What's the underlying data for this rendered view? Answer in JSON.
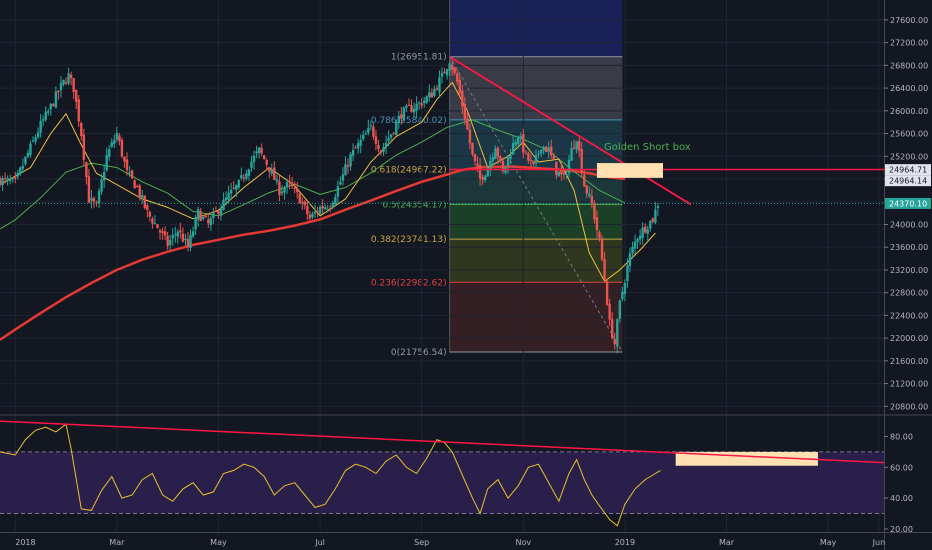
{
  "chart_data": {
    "type": "candlestick",
    "x_axis": {
      "ticks": [
        {
          "label": "2018",
          "t": 0
        },
        {
          "label": "Mar",
          "t": 2
        },
        {
          "label": "May",
          "t": 4
        },
        {
          "label": "Jul",
          "t": 6
        },
        {
          "label": "Sep",
          "t": 8
        },
        {
          "label": "Nov",
          "t": 10
        },
        {
          "label": "2019",
          "t": 12
        },
        {
          "label": "Mar",
          "t": 14
        },
        {
          "label": "May",
          "t": 16
        },
        {
          "label": "Jun",
          "t": 17
        }
      ],
      "range": [
        -0.3,
        17.1
      ]
    },
    "y_axis": {
      "range": [
        20700,
        27950
      ],
      "ticks": [
        20800,
        21200,
        21600,
        22000,
        22400,
        22800,
        23200,
        23600,
        24000,
        24400,
        24800,
        25200,
        25600,
        26000,
        26400,
        26800,
        27200,
        27600
      ],
      "tick_labels": [
        "20800.00",
        "21200.00",
        "21600.00",
        "22000.00",
        "22400.00",
        "22800.00",
        "23200.00",
        "23600.00",
        "24000.00",
        "24400.00",
        "24800.00",
        "25200.00",
        "25600.00",
        "26000.00",
        "26400.00",
        "26800.00",
        "27200.00",
        "27600.00"
      ]
    },
    "price_tags": [
      {
        "label": "24964.71",
        "value": 24964.71,
        "color": "#e0e3eb",
        "text_color": "#131722"
      },
      {
        "label": "24964.14",
        "value": 24964.14,
        "color": "#e0e3eb",
        "text_color": "#131722"
      },
      {
        "label": "24370.10",
        "value": 24370.1,
        "color": "#26a69a",
        "text_color": "#ffffff"
      }
    ],
    "fibonacci": {
      "t_start": 8.55,
      "t_end": 11.95,
      "levels": [
        {
          "label": "1(26951.81)",
          "value": 26951.81,
          "color": "#9598a1",
          "fill": "#434651"
        },
        {
          "label": "0.786(25840.02)",
          "value": 25840.02,
          "color": "#4a90b8",
          "fill": "#1e4050"
        },
        {
          "label": "0.618(24967.22)",
          "value": 24967.22,
          "color": "#c7a544",
          "fill": "#1e4040"
        },
        {
          "label": "0.5(24354.17)",
          "value": 24354.17,
          "color": "#4caf50",
          "fill": "#1f4a2a"
        },
        {
          "label": "0.382(23741.13)",
          "value": 23741.13,
          "color": "#c7a544",
          "fill": "#37401e"
        },
        {
          "label": "0.236(22982.62)",
          "value": 22982.62,
          "color": "#e04040",
          "fill": "#3d2226"
        },
        {
          "label": "0(21756.54)",
          "value": 21756.54,
          "color": "#9598a1",
          "fill": null
        }
      ],
      "extension_fill": "#1b2560"
    },
    "annotation": {
      "text": "Golden Short box",
      "color": "#4caf50"
    },
    "short_box": {
      "t_start": 11.45,
      "t_end": 12.75,
      "y_bottom": 24820,
      "y_top": 25080,
      "color": "#ffe0b2"
    },
    "horizontal_line": {
      "value": 24967,
      "color": "#ff1744"
    },
    "trendline": {
      "points": [
        [
          8.55,
          26951.81
        ],
        [
          13.3,
          24350
        ]
      ],
      "color": "#ff1744"
    },
    "dashed_line": {
      "points": [
        [
          8.55,
          26951.81
        ],
        [
          11.95,
          21756.54
        ]
      ],
      "color": "#787b86"
    },
    "moving_averages": [
      {
        "name": "",
        "color": "#e53935",
        "width": 2.5,
        "values": [
          [
            -0.3,
            21970
          ],
          [
            0,
            22150
          ],
          [
            0.5,
            22440
          ],
          [
            1,
            22720
          ],
          [
            1.5,
            22970
          ],
          [
            2,
            23200
          ],
          [
            2.5,
            23380
          ],
          [
            3,
            23520
          ],
          [
            3.5,
            23640
          ],
          [
            4,
            23730
          ],
          [
            4.5,
            23820
          ],
          [
            5,
            23890
          ],
          [
            5.5,
            23980
          ],
          [
            6,
            24090
          ],
          [
            6.5,
            24260
          ],
          [
            7,
            24420
          ],
          [
            7.5,
            24590
          ],
          [
            8,
            24750
          ],
          [
            8.5,
            24880
          ],
          [
            8.8,
            24960
          ],
          [
            9.2,
            25010
          ],
          [
            9.8,
            25020
          ],
          [
            10.3,
            24990
          ],
          [
            10.8,
            24960
          ],
          [
            11.3,
            24900
          ],
          [
            11.7,
            24830
          ],
          [
            12,
            24800
          ]
        ]
      },
      {
        "name": "",
        "color": "#4caf50",
        "width": 1,
        "values": [
          [
            -0.3,
            23920
          ],
          [
            0,
            24080
          ],
          [
            0.5,
            24470
          ],
          [
            1,
            24920
          ],
          [
            1.5,
            25080
          ],
          [
            2,
            25000
          ],
          [
            2.5,
            24750
          ],
          [
            3,
            24550
          ],
          [
            3.5,
            24230
          ],
          [
            4,
            24150
          ],
          [
            4.5,
            24350
          ],
          [
            5,
            24560
          ],
          [
            5.5,
            24710
          ],
          [
            6,
            24530
          ],
          [
            6.5,
            24650
          ],
          [
            7,
            24910
          ],
          [
            7.5,
            25220
          ],
          [
            8,
            25450
          ],
          [
            8.5,
            25710
          ],
          [
            9,
            25840
          ],
          [
            9.5,
            25660
          ],
          [
            10,
            25500
          ],
          [
            10.5,
            25300
          ],
          [
            11,
            24930
          ],
          [
            11.5,
            24600
          ],
          [
            12,
            24380
          ]
        ]
      },
      {
        "name": "",
        "color": "#f0c040",
        "width": 1,
        "values": [
          [
            -0.3,
            24700
          ],
          [
            0,
            24850
          ],
          [
            0.3,
            25000
          ],
          [
            0.7,
            25600
          ],
          [
            1,
            25950
          ],
          [
            1.3,
            25400
          ],
          [
            1.6,
            24900
          ],
          [
            2,
            24700
          ],
          [
            2.5,
            24450
          ],
          [
            3,
            24300
          ],
          [
            3.5,
            24100
          ],
          [
            4,
            24250
          ],
          [
            4.5,
            24650
          ],
          [
            5,
            25000
          ],
          [
            5.5,
            24680
          ],
          [
            6,
            24150
          ],
          [
            6.5,
            24450
          ],
          [
            7,
            25100
          ],
          [
            7.5,
            25550
          ],
          [
            8,
            25800
          ],
          [
            8.3,
            26200
          ],
          [
            8.6,
            26500
          ],
          [
            8.9,
            26000
          ],
          [
            9.3,
            25000
          ],
          [
            9.7,
            25200
          ],
          [
            10,
            25450
          ],
          [
            10.3,
            25100
          ],
          [
            10.7,
            25150
          ],
          [
            11,
            24600
          ],
          [
            11.3,
            23500
          ],
          [
            11.6,
            23000
          ],
          [
            11.9,
            23200
          ],
          [
            12.3,
            23550
          ],
          [
            12.6,
            23850
          ]
        ]
      }
    ],
    "series": [
      {
        "name": "",
        "values": [
          [
            -0.3,
            24780
          ],
          [
            0,
            24730
          ],
          [
            0.2,
            25150
          ],
          [
            0.35,
            25450
          ],
          [
            0.5,
            25750
          ],
          [
            0.65,
            25980
          ],
          [
            0.8,
            26250
          ],
          [
            0.95,
            26500
          ],
          [
            1.05,
            26616
          ],
          [
            1.15,
            26400
          ],
          [
            1.3,
            25600
          ],
          [
            1.45,
            24450
          ],
          [
            1.6,
            24300
          ],
          [
            1.8,
            25200
          ],
          [
            2,
            25600
          ],
          [
            2.2,
            24900
          ],
          [
            2.4,
            24650
          ],
          [
            2.6,
            24200
          ],
          [
            2.8,
            23950
          ],
          [
            3,
            23650
          ],
          [
            3.2,
            23900
          ],
          [
            3.4,
            23600
          ],
          [
            3.6,
            24200
          ],
          [
            3.8,
            24000
          ],
          [
            4,
            24260
          ],
          [
            4.2,
            24500
          ],
          [
            4.4,
            24700
          ],
          [
            4.6,
            25050
          ],
          [
            4.8,
            25300
          ],
          [
            5,
            25000
          ],
          [
            5.2,
            24600
          ],
          [
            5.4,
            24700
          ],
          [
            5.6,
            24450
          ],
          [
            5.8,
            24100
          ],
          [
            6,
            24300
          ],
          [
            6.2,
            24350
          ],
          [
            6.4,
            24750
          ],
          [
            6.6,
            25200
          ],
          [
            6.8,
            25450
          ],
          [
            7,
            25700
          ],
          [
            7.2,
            25300
          ],
          [
            7.4,
            25600
          ],
          [
            7.6,
            25950
          ],
          [
            7.8,
            26050
          ],
          [
            8,
            26150
          ],
          [
            8.2,
            26300
          ],
          [
            8.4,
            26600
          ],
          [
            8.55,
            26900
          ],
          [
            8.7,
            26500
          ],
          [
            8.85,
            25900
          ],
          [
            9,
            25200
          ],
          [
            9.15,
            24800
          ],
          [
            9.3,
            25000
          ],
          [
            9.45,
            25400
          ],
          [
            9.6,
            24900
          ],
          [
            9.75,
            25300
          ],
          [
            9.9,
            25600
          ],
          [
            10.05,
            25200
          ],
          [
            10.2,
            25000
          ],
          [
            10.35,
            25400
          ],
          [
            10.5,
            25300
          ],
          [
            10.65,
            24950
          ],
          [
            10.8,
            24800
          ],
          [
            10.95,
            25300
          ],
          [
            11.05,
            25550
          ],
          [
            11.2,
            24700
          ],
          [
            11.35,
            24350
          ],
          [
            11.5,
            23700
          ],
          [
            11.6,
            23050
          ],
          [
            11.7,
            22250
          ],
          [
            11.8,
            21900
          ],
          [
            11.9,
            22600
          ],
          [
            12,
            23050
          ],
          [
            12.1,
            23450
          ],
          [
            12.25,
            23800
          ],
          [
            12.4,
            23950
          ],
          [
            12.55,
            24100
          ],
          [
            12.65,
            24370
          ]
        ]
      }
    ],
    "rsi": {
      "y_range": [
        18,
        92
      ],
      "ticks": [
        20,
        40,
        60,
        80
      ],
      "tick_labels": [
        "20.00",
        "40.00",
        "60.00",
        "80.00"
      ],
      "bands": [
        30,
        70
      ],
      "band_fill": "#2a1f4a",
      "trendline": {
        "points": [
          [
            -0.3,
            90
          ],
          [
            17.1,
            63
          ]
        ],
        "color": "#ff1744"
      },
      "box": {
        "t_start": 13.0,
        "t_end": 15.8,
        "y_bottom": 61,
        "y_top": 70,
        "color": "#ffe0b2"
      },
      "values": [
        [
          -0.3,
          70
        ],
        [
          0,
          68
        ],
        [
          0.2,
          78
        ],
        [
          0.4,
          84
        ],
        [
          0.6,
          86
        ],
        [
          0.8,
          83
        ],
        [
          1,
          88
        ],
        [
          1.1,
          72
        ],
        [
          1.3,
          33
        ],
        [
          1.5,
          32
        ],
        [
          1.7,
          45
        ],
        [
          1.9,
          54
        ],
        [
          2.1,
          40
        ],
        [
          2.3,
          42
        ],
        [
          2.5,
          52
        ],
        [
          2.7,
          56
        ],
        [
          2.9,
          42
        ],
        [
          3.1,
          38
        ],
        [
          3.3,
          46
        ],
        [
          3.5,
          50
        ],
        [
          3.7,
          42
        ],
        [
          3.9,
          44
        ],
        [
          4.1,
          56
        ],
        [
          4.3,
          58
        ],
        [
          4.5,
          62
        ],
        [
          4.7,
          60
        ],
        [
          4.9,
          54
        ],
        [
          5.1,
          42
        ],
        [
          5.3,
          48
        ],
        [
          5.5,
          50
        ],
        [
          5.7,
          42
        ],
        [
          5.9,
          34
        ],
        [
          6.1,
          36
        ],
        [
          6.3,
          46
        ],
        [
          6.5,
          58
        ],
        [
          6.7,
          62
        ],
        [
          6.9,
          60
        ],
        [
          7.1,
          56
        ],
        [
          7.3,
          64
        ],
        [
          7.5,
          68
        ],
        [
          7.7,
          60
        ],
        [
          7.9,
          56
        ],
        [
          8.1,
          66
        ],
        [
          8.3,
          78
        ],
        [
          8.45,
          76
        ],
        [
          8.6,
          70
        ],
        [
          8.8,
          55
        ],
        [
          9,
          40
        ],
        [
          9.15,
          30
        ],
        [
          9.3,
          46
        ],
        [
          9.5,
          52
        ],
        [
          9.7,
          40
        ],
        [
          9.9,
          48
        ],
        [
          10.1,
          60
        ],
        [
          10.3,
          62
        ],
        [
          10.5,
          50
        ],
        [
          10.7,
          38
        ],
        [
          10.9,
          56
        ],
        [
          11.05,
          65
        ],
        [
          11.2,
          52
        ],
        [
          11.35,
          42
        ],
        [
          11.5,
          35
        ],
        [
          11.7,
          26
        ],
        [
          11.85,
          22
        ],
        [
          12,
          36
        ],
        [
          12.2,
          46
        ],
        [
          12.4,
          52
        ],
        [
          12.6,
          56
        ],
        [
          12.7,
          58
        ]
      ]
    }
  }
}
